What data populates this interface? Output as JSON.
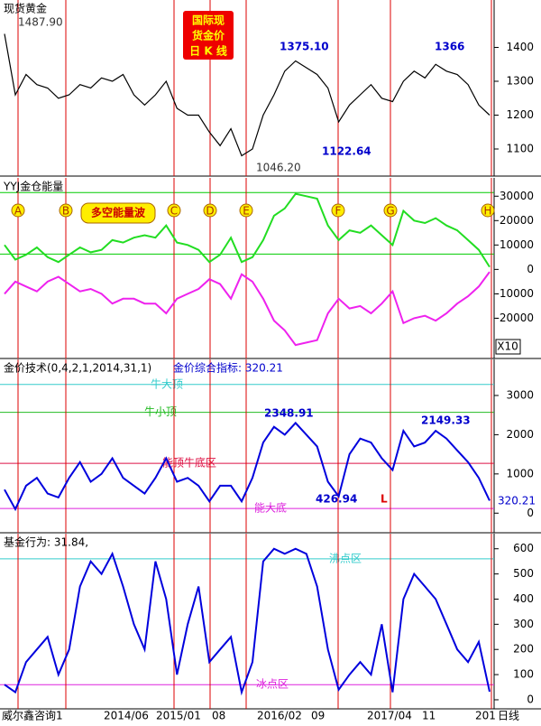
{
  "chart_data": [
    {
      "type": "line",
      "title": "现货黄金",
      "badge": [
        "国际现",
        "货金价",
        "日 K 线"
      ],
      "ylim": [
        1020,
        1540
      ],
      "yticks": [
        1100,
        1200,
        1300,
        1400
      ],
      "series": [
        {
          "color": "#000000",
          "values": [
            1440,
            1260,
            1320,
            1290,
            1280,
            1250,
            1260,
            1290,
            1280,
            1310,
            1300,
            1320,
            1260,
            1230,
            1260,
            1300,
            1220,
            1200,
            1200,
            1150,
            1110,
            1160,
            1080,
            1100,
            1200,
            1260,
            1330,
            1360,
            1340,
            1320,
            1280,
            1180,
            1230,
            1260,
            1290,
            1250,
            1240,
            1300,
            1330,
            1310,
            1350,
            1330,
            1320,
            1290,
            1230,
            1200
          ]
        }
      ],
      "annotations": [
        "1487.90",
        "1375.10",
        "1366",
        "1122.64",
        "1046.20"
      ]
    },
    {
      "type": "line",
      "title": "YYJ金仓能量",
      "badge": [
        "多空能量波"
      ],
      "markers": [
        "A",
        "B",
        "C",
        "D",
        "E",
        "F",
        "G",
        "H"
      ],
      "unit": "X10",
      "ylim": [
        -36500,
        37500
      ],
      "yticks": [
        30000,
        20000,
        10000,
        0,
        -10000,
        -20000
      ],
      "hlines": [
        {
          "value": 31500,
          "color": "#00cc00"
        },
        {
          "value": 6300,
          "color": "#00cc00"
        }
      ],
      "series": [
        {
          "color": "#22dd22",
          "values": [
            10000,
            4000,
            6000,
            9000,
            5000,
            3000,
            6000,
            9000,
            7000,
            8000,
            12000,
            11000,
            13000,
            14000,
            13000,
            18000,
            11000,
            10000,
            8000,
            3000,
            6000,
            13000,
            3000,
            5000,
            12000,
            22000,
            25000,
            31000,
            30000,
            29000,
            18000,
            12000,
            16000,
            15000,
            18000,
            14000,
            10000,
            24000,
            20000,
            19000,
            21000,
            18000,
            16000,
            12000,
            8000,
            1000
          ]
        },
        {
          "color": "#ee22ee",
          "values": [
            -10000,
            -5000,
            -7000,
            -9000,
            -5000,
            -3000,
            -6000,
            -9000,
            -8000,
            -10000,
            -14000,
            -12000,
            -12000,
            -14000,
            -14000,
            -18000,
            -12000,
            -10000,
            -8000,
            -4000,
            -6000,
            -12000,
            -2000,
            -5000,
            -12000,
            -21000,
            -25000,
            -31000,
            -30000,
            -29000,
            -18000,
            -12000,
            -16000,
            -15000,
            -18000,
            -14000,
            -9000,
            -22000,
            -20000,
            -19000,
            -21000,
            -18000,
            -14000,
            -11000,
            -7000,
            -1000
          ]
        }
      ]
    },
    {
      "type": "line",
      "title": "金价技术(0,4,2,1,2014,31,1)",
      "subtitle": "金价综合指标: 320.21",
      "ylim": [
        -500,
        3920
      ],
      "yticks": [
        0,
        1000,
        2000,
        3000
      ],
      "hlines": [
        {
          "value": 3280,
          "color": "#33cccc",
          "label": "牛大顶"
        },
        {
          "value": 2570,
          "color": "#22bb22",
          "label": "牛小顶"
        },
        {
          "value": 1270,
          "color": "#dd1144",
          "label": "能顶牛底区"
        },
        {
          "value": 120,
          "color": "#dd22dd",
          "label": "能大底"
        }
      ],
      "series": [
        {
          "color": "#0000dd",
          "values": [
            600,
            100,
            700,
            900,
            500,
            400,
            900,
            1300,
            800,
            1000,
            1400,
            900,
            700,
            500,
            900,
            1400,
            800,
            900,
            700,
            300,
            700,
            700,
            300,
            900,
            1800,
            2200,
            2000,
            2300,
            2000,
            1700,
            800,
            427,
            1500,
            1900,
            1800,
            1400,
            1100,
            2100,
            1700,
            1800,
            2100,
            1900,
            1600,
            1300,
            900,
            320
          ]
        }
      ],
      "annotations": [
        "2348.91",
        "2149.33",
        "426.94",
        "L",
        "320.21"
      ]
    },
    {
      "type": "line",
      "title": "基金行为: 31.84,",
      "ylim": [
        -36,
        660
      ],
      "yticks": [
        0,
        100,
        200,
        300,
        400,
        500,
        600
      ],
      "hlines": [
        {
          "value": 560,
          "color": "#33cccc",
          "label": "沸点区"
        },
        {
          "value": 60,
          "color": "#dd22dd",
          "label": "冰点区"
        }
      ],
      "series": [
        {
          "color": "#0000dd",
          "values": [
            60,
            30,
            150,
            200,
            250,
            100,
            200,
            450,
            550,
            500,
            580,
            450,
            300,
            200,
            550,
            400,
            100,
            300,
            450,
            150,
            200,
            250,
            30,
            150,
            550,
            600,
            580,
            600,
            580,
            450,
            200,
            40,
            100,
            150,
            100,
            300,
            30,
            400,
            500,
            450,
            400,
            300,
            200,
            150,
            230,
            32
          ]
        }
      ]
    }
  ],
  "x_labels": [
    "威尔鑫咨询",
    "1",
    "2014/06",
    "2015/01",
    "08",
    "2016/02",
    "09",
    "2017/04",
    "11",
    "201",
    "日线"
  ]
}
